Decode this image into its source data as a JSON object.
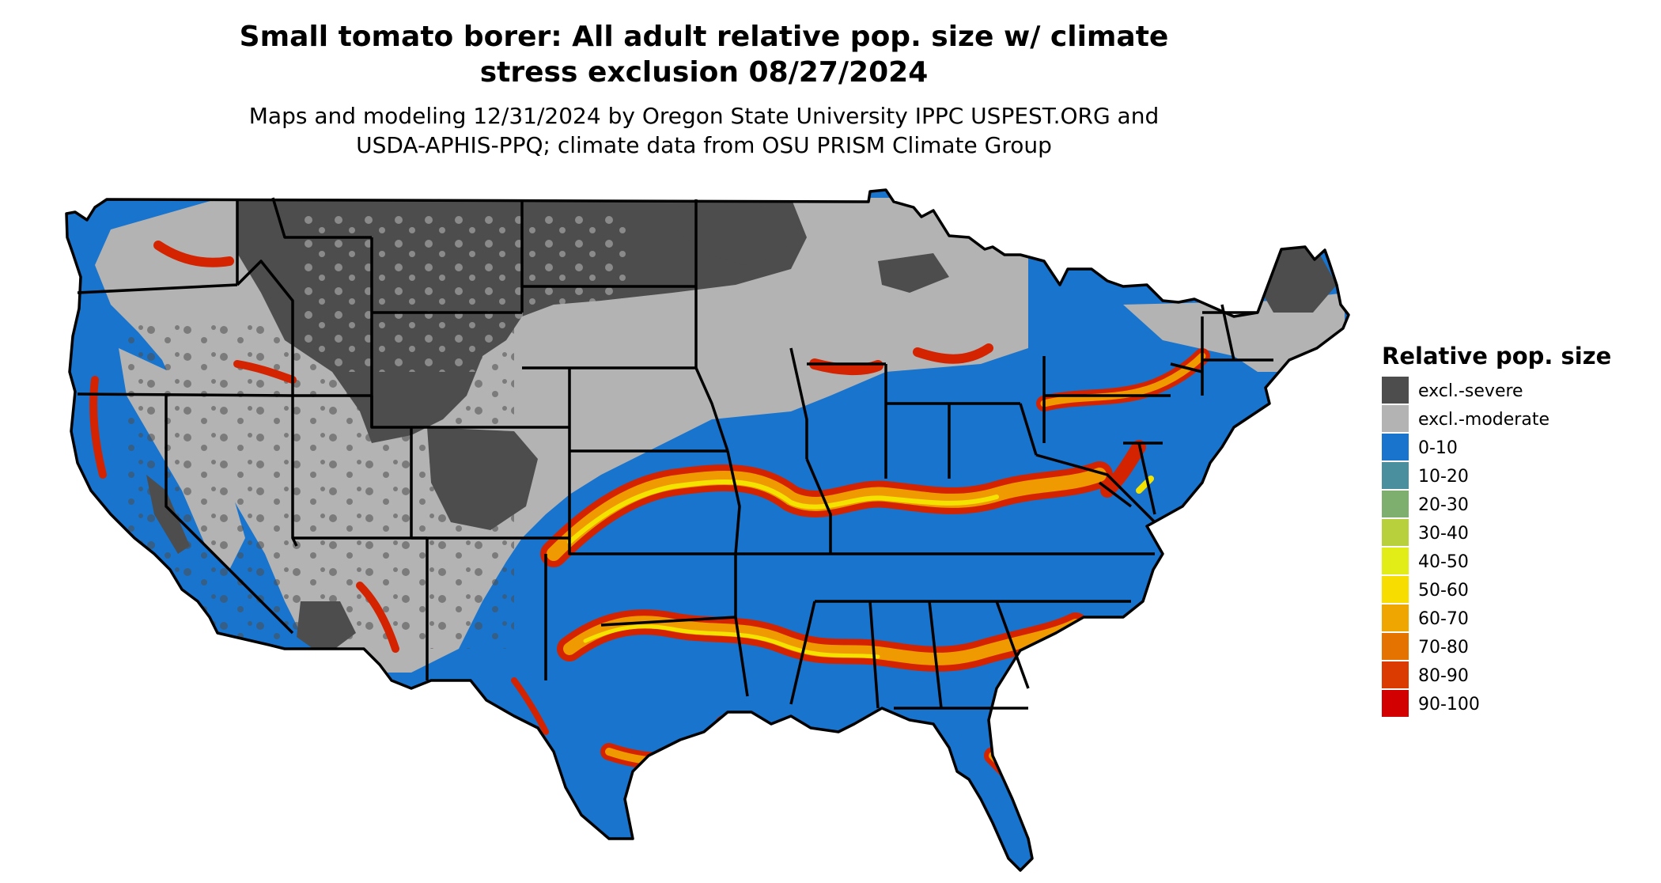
{
  "title": {
    "line1": "Small tomato borer: All adult relative pop. size w/ climate",
    "line2": "stress exclusion 08/27/2024"
  },
  "subtitle": {
    "line1": "Maps and modeling 12/31/2024 by Oregon State University IPPC USPEST.ORG and",
    "line2": "USDA-APHIS-PPQ; climate data from OSU PRISM Climate Group"
  },
  "map": {
    "region": "Contiguous United States",
    "colors": {
      "excl_severe": "#4d4d4d",
      "excl_moderate": "#b3b3b3",
      "low": "#1874cd",
      "high_band": "#d42300",
      "mid_band": "#ef9a00",
      "peak_band": "#f4e300",
      "state_border": "#000000"
    }
  },
  "legend": {
    "title": "Relative pop. size",
    "items": [
      {
        "label": "excl.-severe",
        "color": "#4d4d4d"
      },
      {
        "label": "excl.-moderate",
        "color": "#b3b3b3"
      },
      {
        "label": "0-10",
        "color": "#1874cd"
      },
      {
        "label": "10-20",
        "color": "#4a8f9e"
      },
      {
        "label": "20-30",
        "color": "#7eaf6f"
      },
      {
        "label": "30-40",
        "color": "#b8d03c"
      },
      {
        "label": "40-50",
        "color": "#e2ec16"
      },
      {
        "label": "50-60",
        "color": "#f7de00"
      },
      {
        "label": "60-70",
        "color": "#efa600"
      },
      {
        "label": "70-80",
        "color": "#e57300"
      },
      {
        "label": "80-90",
        "color": "#db3b00"
      },
      {
        "label": "90-100",
        "color": "#d20000"
      }
    ]
  }
}
